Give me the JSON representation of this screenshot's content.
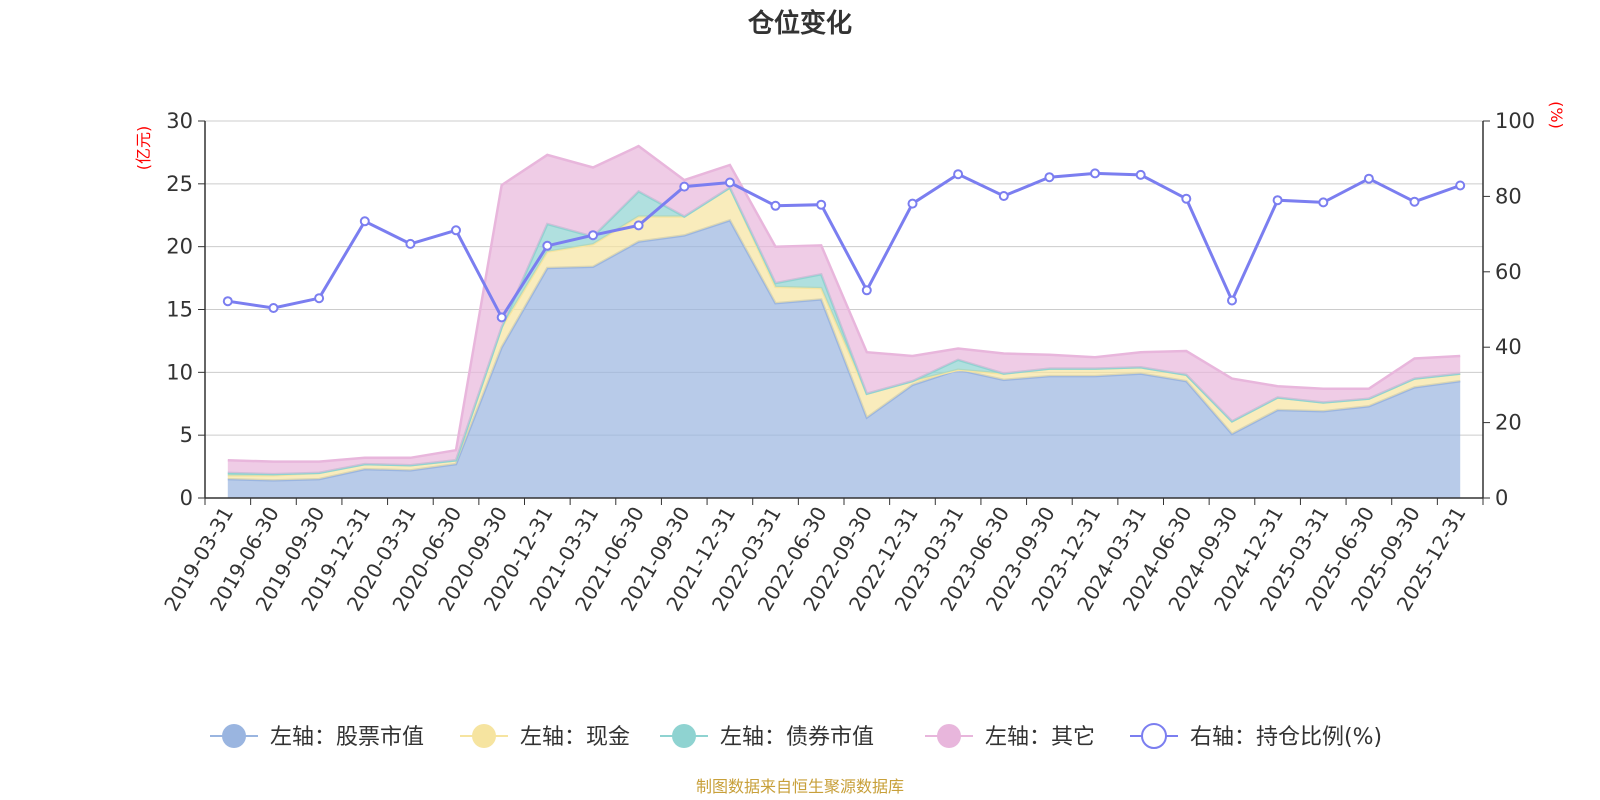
{
  "source_text": "制图数据来自恒生聚源数据库",
  "source_color": "#c8a03a",
  "chart_data": {
    "type": "area",
    "title": "仓位变化",
    "left_axis": {
      "unit": "(亿元)",
      "range": [
        0,
        30
      ],
      "ticks": [
        0,
        5,
        10,
        15,
        20,
        25,
        30
      ],
      "unit_color": "#ff0000"
    },
    "right_axis": {
      "unit": "(%)",
      "range": [
        0,
        100
      ],
      "ticks": [
        0,
        20,
        40,
        60,
        80,
        100
      ],
      "unit_color": "#ff0000"
    },
    "grid": true,
    "legend_position": "bottom",
    "categories": [
      "2019-03-31",
      "2019-06-30",
      "2019-09-30",
      "2019-12-31",
      "2020-03-31",
      "2020-06-30",
      "2020-09-30",
      "2020-12-31",
      "2021-03-31",
      "2021-06-30",
      "2021-09-30",
      "2021-12-31",
      "2022-03-31",
      "2022-06-30",
      "2022-09-30",
      "2022-12-31",
      "2023-03-31",
      "2023-06-30",
      "2023-09-30",
      "2023-12-31",
      "2024-03-31",
      "2024-06-30",
      "2024-09-30",
      "2024-12-31",
      "2025-03-31",
      "2025-06-30",
      "2025-09-30",
      "2025-12-31"
    ],
    "series": [
      {
        "name": "左轴：股票市值",
        "axis": "left",
        "type": "area",
        "color": "#9ab5e0",
        "values": [
          1.5,
          1.4,
          1.5,
          2.3,
          2.2,
          2.7,
          12.0,
          18.3,
          18.4,
          20.4,
          20.9,
          22.1,
          15.5,
          15.8,
          6.4,
          9.0,
          10.2,
          9.4,
          9.7,
          9.7,
          9.9,
          9.3,
          5.1,
          7.0,
          6.9,
          7.3,
          8.8,
          9.3
        ]
      },
      {
        "name": "左轴：现金",
        "axis": "left",
        "type": "area",
        "color": "#f6e4a0",
        "values": [
          0.3,
          0.4,
          0.5,
          0.4,
          0.4,
          0.3,
          1.6,
          1.3,
          1.8,
          2.0,
          1.5,
          2.6,
          1.3,
          0.9,
          1.9,
          0.3,
          0.0,
          0.5,
          0.6,
          0.6,
          0.5,
          0.5,
          1.0,
          1.0,
          0.7,
          0.6,
          0.7,
          0.6
        ]
      },
      {
        "name": "左轴：债券市值",
        "axis": "left",
        "type": "area",
        "color": "#8fd3d1",
        "values": [
          0.2,
          0.1,
          0.0,
          0.0,
          0.0,
          0.0,
          0.0,
          2.2,
          0.6,
          2.0,
          0.0,
          0.0,
          0.3,
          1.1,
          0.0,
          0.0,
          0.8,
          0.0,
          0.0,
          0.0,
          0.0,
          0.0,
          0.0,
          0.0,
          0.0,
          0.0,
          0.0,
          0.0
        ]
      },
      {
        "name": "左轴：其它",
        "axis": "left",
        "type": "area",
        "color": "#e8b6dc",
        "values": [
          1.0,
          1.0,
          0.9,
          0.5,
          0.6,
          0.8,
          11.3,
          5.5,
          5.5,
          3.6,
          2.9,
          1.8,
          2.9,
          2.3,
          3.3,
          2.0,
          0.9,
          1.6,
          1.1,
          0.9,
          1.2,
          1.9,
          3.4,
          0.9,
          1.1,
          0.8,
          1.6,
          1.4
        ]
      },
      {
        "name": "右轴：持仓比例(%)",
        "axis": "right",
        "type": "line",
        "color": "#7b7ef0",
        "values": [
          52.2,
          50.4,
          53.0,
          73.4,
          67.4,
          71.0,
          47.9,
          66.9,
          69.7,
          72.3,
          82.6,
          83.7,
          77.5,
          77.8,
          55.1,
          78.1,
          85.9,
          80.1,
          85.1,
          86.1,
          85.7,
          79.4,
          52.4,
          79.0,
          78.4,
          84.7,
          78.6,
          82.9
        ]
      }
    ]
  }
}
